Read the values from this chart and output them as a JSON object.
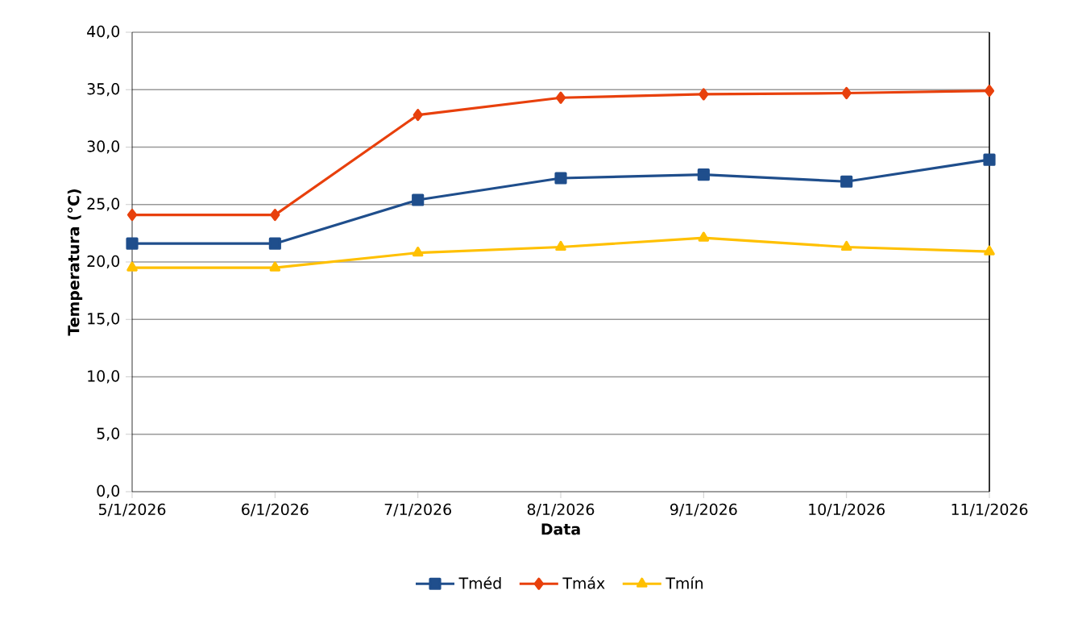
{
  "chart_data": {
    "type": "line",
    "xlabel": "Data",
    "ylabel": "Temperatura (°C)",
    "categories": [
      "5/1/2026",
      "6/1/2026",
      "7/1/2026",
      "8/1/2026",
      "9/1/2026",
      "10/1/2026",
      "11/1/2026"
    ],
    "series": [
      {
        "name": "Tméd",
        "color": "#1f4e8c",
        "marker": "square",
        "values": [
          21.6,
          21.6,
          25.4,
          27.3,
          27.6,
          27.0,
          28.9
        ]
      },
      {
        "name": "Tmáx",
        "color": "#e8400c",
        "marker": "diamond",
        "values": [
          24.1,
          24.1,
          32.8,
          34.3,
          34.6,
          34.7,
          34.9
        ]
      },
      {
        "name": "Tmín",
        "color": "#ffc000",
        "marker": "triangle",
        "values": [
          19.5,
          19.5,
          20.8,
          21.3,
          22.1,
          21.3,
          20.9
        ]
      }
    ],
    "ylim": [
      0,
      40
    ],
    "yticks": [
      {
        "value": 0,
        "label": "0,0"
      },
      {
        "value": 5,
        "label": "5,0"
      },
      {
        "value": 10,
        "label": "10,0"
      },
      {
        "value": 15,
        "label": "15,0"
      },
      {
        "value": 20,
        "label": "20,0"
      },
      {
        "value": 25,
        "label": "25,0"
      },
      {
        "value": 30,
        "label": "30,0"
      },
      {
        "value": 35,
        "label": "35,0"
      },
      {
        "value": 40,
        "label": "40,0"
      }
    ],
    "grid": "y",
    "legend": "bottom",
    "line_style": "solid"
  }
}
